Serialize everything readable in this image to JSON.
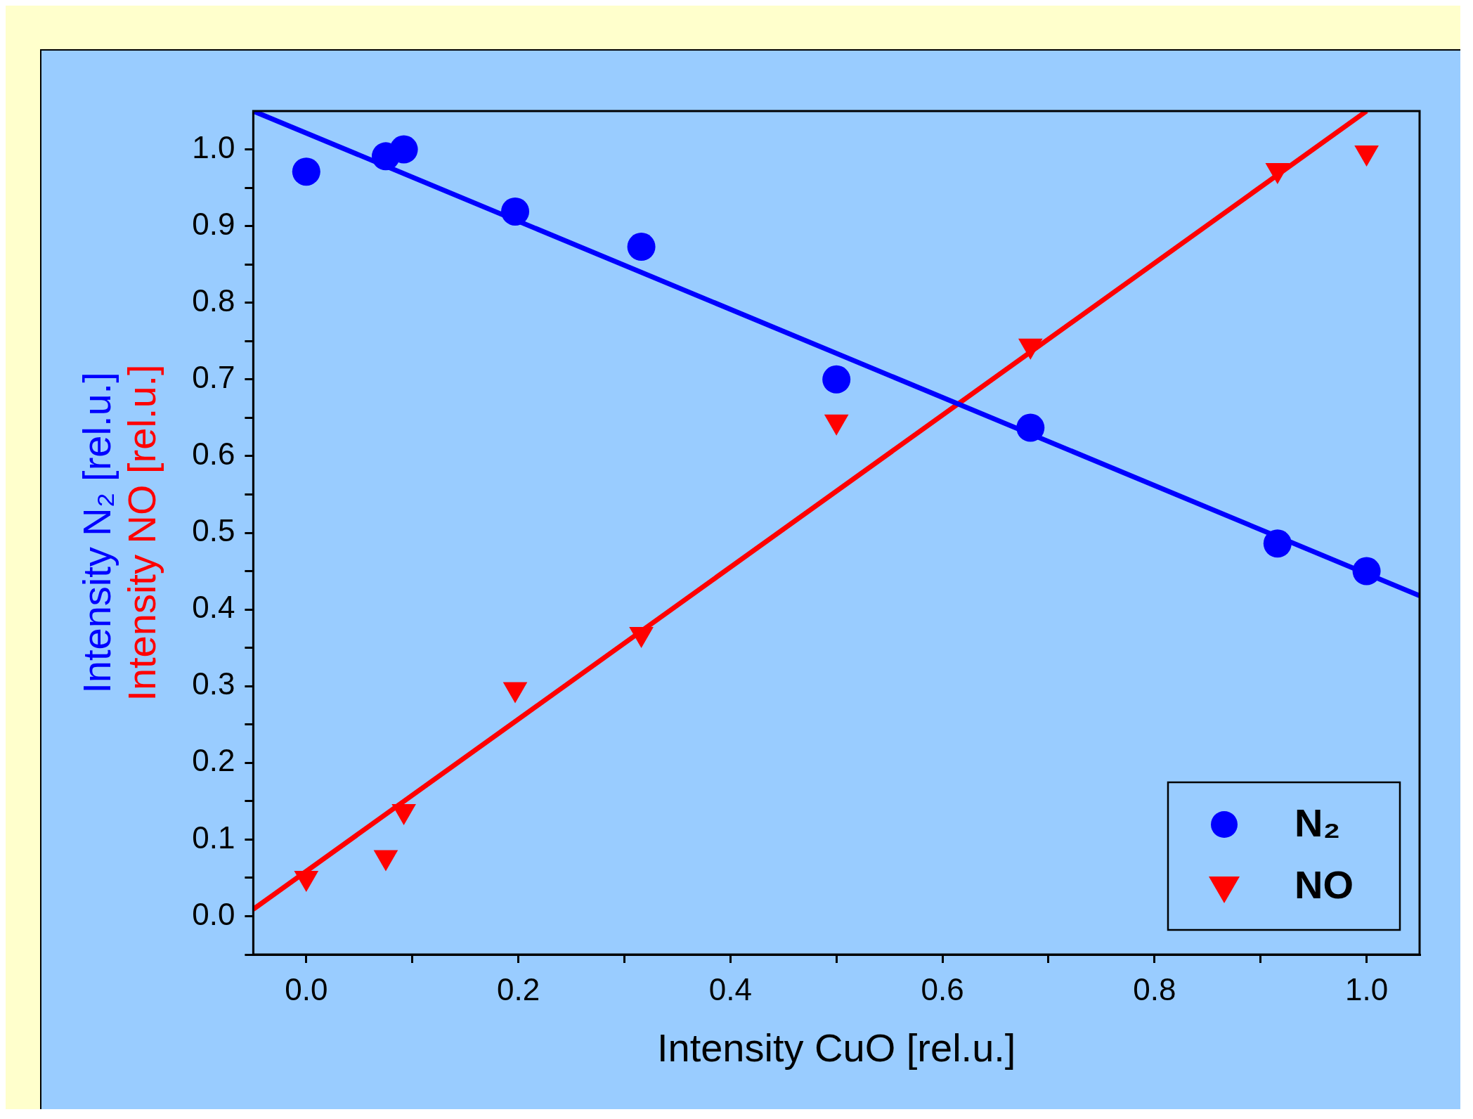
{
  "chart_data": {
    "type": "scatter",
    "xlabel": "Intensity CuO [rel.u.]",
    "ylabel": "Intensity N₂ [rel.u.]",
    "annotations": [
      "Intensity NO [rel.u.]"
    ],
    "xlim": [
      -0.05,
      1.05
    ],
    "ylim": [
      -0.05,
      1.05
    ],
    "xticks": [
      {
        "value": 0,
        "label": "0.0"
      },
      {
        "value": 0.1,
        "label": null
      },
      {
        "value": 0.2,
        "label": "0.2"
      },
      {
        "value": 0.3,
        "label": null
      },
      {
        "value": 0.4,
        "label": "0.4"
      },
      {
        "value": 0.5,
        "label": null
      },
      {
        "value": 0.6,
        "label": "0.6"
      },
      {
        "value": 0.7,
        "label": null
      },
      {
        "value": 0.8,
        "label": "0.8"
      },
      {
        "value": 0.9,
        "label": null
      },
      {
        "value": 1,
        "label": "1.0"
      }
    ],
    "yticks": [
      {
        "value": -0.05,
        "label": null
      },
      {
        "value": 0,
        "label": "0.0"
      },
      {
        "value": 0.05,
        "label": null
      },
      {
        "value": 0.1,
        "label": "0.1"
      },
      {
        "value": 0.15,
        "label": null
      },
      {
        "value": 0.2,
        "label": "0.2"
      },
      {
        "value": 0.25,
        "label": null
      },
      {
        "value": 0.3,
        "label": "0.3"
      },
      {
        "value": 0.35,
        "label": null
      },
      {
        "value": 0.4,
        "label": "0.4"
      },
      {
        "value": 0.45,
        "label": null
      },
      {
        "value": 0.5,
        "label": "0.5"
      },
      {
        "value": 0.55,
        "label": null
      },
      {
        "value": 0.6,
        "label": "0.6"
      },
      {
        "value": 0.65,
        "label": null
      },
      {
        "value": 0.7,
        "label": "0.7"
      },
      {
        "value": 0.75,
        "label": null
      },
      {
        "value": 0.8,
        "label": "0.8"
      },
      {
        "value": 0.85,
        "label": null
      },
      {
        "value": 0.9,
        "label": "0.9"
      },
      {
        "value": 0.95,
        "label": null
      },
      {
        "value": 1,
        "label": "1.0"
      }
    ],
    "grid": false,
    "legend": "bottom right",
    "series": [
      {
        "name": "N₂",
        "marker": "circle",
        "color": "#0000ff",
        "x": [
          0,
          0.075,
          0.092,
          0.197,
          0.316,
          0.5,
          0.683,
          0.916,
          1.0
        ],
        "values": [
          0.971,
          0.991,
          1.0,
          0.919,
          0.873,
          0.7,
          0.637,
          0.486,
          0.45
        ]
      },
      {
        "name": "NO",
        "marker": "triangle",
        "color": "#ff0000",
        "x": [
          0,
          0.075,
          0.092,
          0.197,
          0.316,
          0.5,
          0.683,
          0.916,
          1.0
        ],
        "values": [
          0.05,
          0.077,
          0.137,
          0.296,
          0.368,
          0.645,
          0.744,
          0.973,
          0.996
        ]
      },
      {
        "type": "line",
        "marker": "none",
        "color": "#0000ff",
        "x": [
          -0.05,
          1.05
        ],
        "values": [
          1.05,
          0.418
        ]
      },
      {
        "type": "line",
        "marker": "none",
        "color": "#ff0000",
        "x": [
          -0.05,
          1.0
        ],
        "values": [
          0.009,
          1.05
        ]
      }
    ]
  }
}
